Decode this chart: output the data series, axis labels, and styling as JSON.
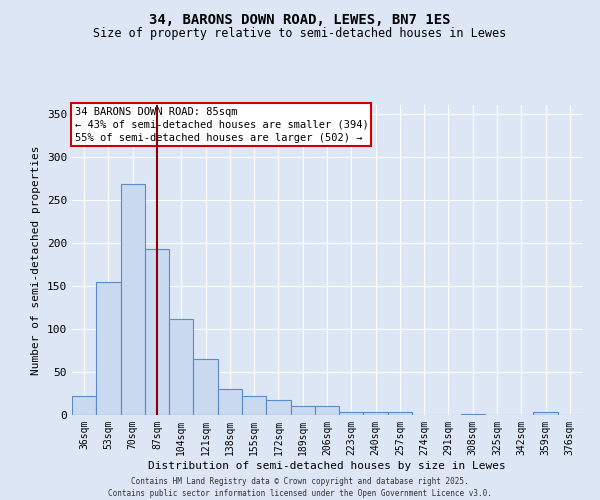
{
  "title1": "34, BARONS DOWN ROAD, LEWES, BN7 1ES",
  "title2": "Size of property relative to semi-detached houses in Lewes",
  "xlabel": "Distribution of semi-detached houses by size in Lewes",
  "ylabel": "Number of semi-detached properties",
  "bar_labels": [
    "36sqm",
    "53sqm",
    "70sqm",
    "87sqm",
    "104sqm",
    "121sqm",
    "138sqm",
    "155sqm",
    "172sqm",
    "189sqm",
    "206sqm",
    "223sqm",
    "240sqm",
    "257sqm",
    "274sqm",
    "291sqm",
    "308sqm",
    "325sqm",
    "342sqm",
    "359sqm",
    "376sqm"
  ],
  "bar_values": [
    22,
    154,
    268,
    193,
    112,
    65,
    30,
    22,
    18,
    10,
    10,
    3,
    4,
    4,
    0,
    0,
    1,
    0,
    0,
    3,
    0
  ],
  "bar_color": "#c9d9f0",
  "bar_edge_color": "#5b8ac5",
  "vline_bin": 3,
  "vline_color": "#8b0000",
  "ylim": [
    0,
    360
  ],
  "yticks": [
    0,
    50,
    100,
    150,
    200,
    250,
    300,
    350
  ],
  "annotation_title": "34 BARONS DOWN ROAD: 85sqm",
  "annotation_line1": "← 43% of semi-detached houses are smaller (394)",
  "annotation_line2": "55% of semi-detached houses are larger (502) →",
  "annotation_box_color": "#ffffff",
  "annotation_border_color": "#cc0000",
  "footer1": "Contains HM Land Registry data © Crown copyright and database right 2025.",
  "footer2": "Contains public sector information licensed under the Open Government Licence v3.0.",
  "background_color": "#dce6f5",
  "grid_color": "#ffffff"
}
